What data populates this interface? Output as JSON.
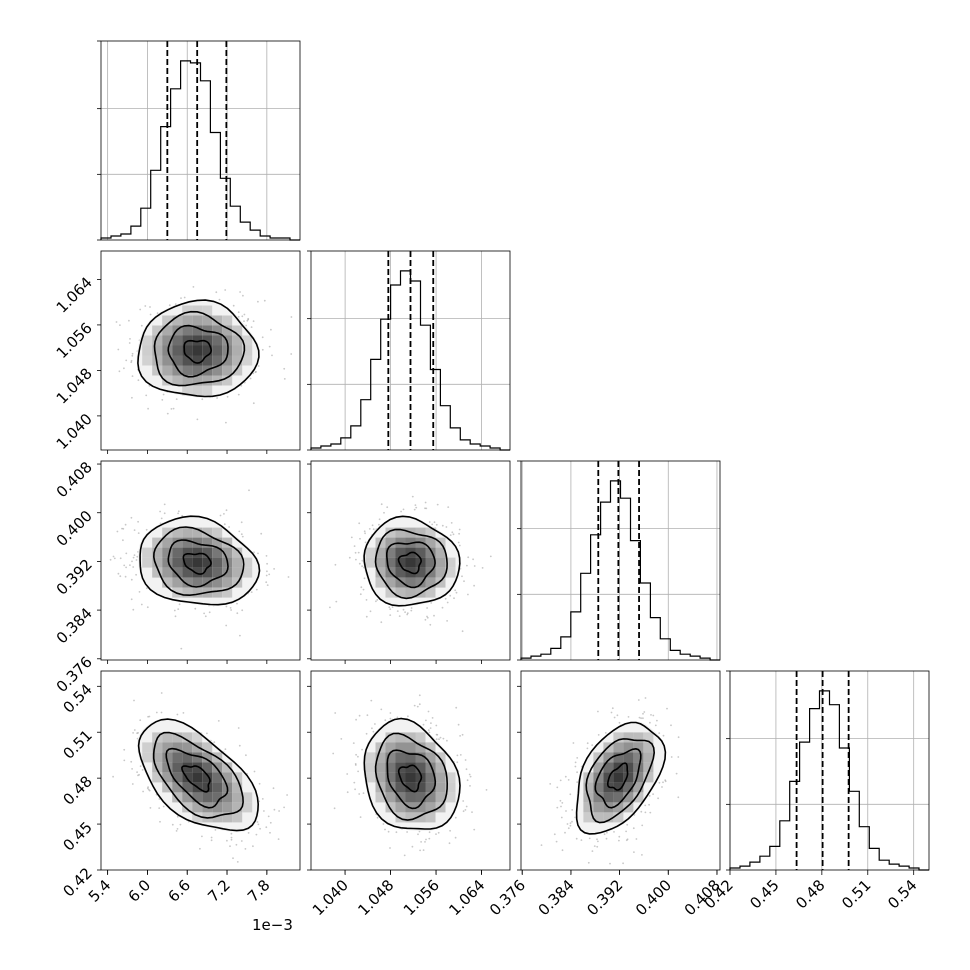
{
  "chart_data": {
    "type": "corner",
    "grid": true,
    "parameters": [
      {
        "range": [
          5.3,
          8.3
        ],
        "ticks": [
          "5.4",
          "6.0",
          "6.6",
          "7.2",
          "7.8"
        ],
        "tick_values": [
          5.4,
          6.0,
          6.6,
          7.2,
          7.8
        ],
        "offset_label": "1e−3"
      },
      {
        "range": [
          1.034,
          1.069
        ],
        "ticks": [
          "1.040",
          "1.048",
          "1.056",
          "1.064"
        ],
        "tick_values": [
          1.04,
          1.048,
          1.056,
          1.064
        ]
      },
      {
        "range": [
          0.3758,
          0.4085
        ],
        "ticks": [
          "0.376",
          "0.384",
          "0.392",
          "0.400",
          "0.408"
        ],
        "tick_values": [
          0.376,
          0.384,
          0.392,
          0.4,
          0.408
        ]
      },
      {
        "range": [
          0.42,
          0.55
        ],
        "ticks": [
          "0.42",
          "0.45",
          "0.48",
          "0.51",
          "0.54"
        ],
        "tick_values": [
          0.42,
          0.45,
          0.48,
          0.51,
          0.54
        ]
      }
    ],
    "quantiles": [
      [
        6.3,
        6.75,
        7.19
      ],
      [
        1.0476,
        1.0515,
        1.0555
      ],
      [
        0.3885,
        0.3918,
        0.3952
      ],
      [
        0.4635,
        0.4805,
        0.4975
      ]
    ],
    "histograms": [
      {
        "edges_start": 5.3,
        "bin_width": 0.15,
        "counts": [
          1,
          2,
          3,
          7,
          16,
          35,
          57,
          76,
          90,
          89,
          80,
          54,
          31,
          17,
          9,
          5,
          2,
          1,
          1,
          0
        ]
      },
      {
        "edges_start": 1.034,
        "bin_width": 0.00175,
        "counts": [
          1,
          2,
          3,
          6,
          12,
          25,
          45,
          65,
          82,
          89,
          84,
          62,
          40,
          22,
          11,
          5,
          3,
          2,
          1,
          0
        ]
      },
      {
        "edges_start": 0.3758,
        "bin_width": 0.001635,
        "counts": [
          1,
          2,
          3,
          6,
          12,
          25,
          45,
          65,
          82,
          93,
          84,
          62,
          40,
          22,
          11,
          5,
          3,
          2,
          1,
          0
        ]
      },
      {
        "edges_start": 0.42,
        "bin_width": 0.0065,
        "counts": [
          1,
          2,
          4,
          7,
          12,
          25,
          45,
          65,
          82,
          91,
          84,
          62,
          40,
          22,
          11,
          5,
          3,
          2,
          1,
          0
        ]
      }
    ],
    "densities": [
      {
        "row": 1,
        "col": 0,
        "center": [
          6.75,
          1.0515
        ],
        "sd": [
          0.45,
          0.0042
        ],
        "rho": 0.0
      },
      {
        "row": 2,
        "col": 0,
        "center": [
          6.75,
          0.3918
        ],
        "sd": [
          0.45,
          0.0036
        ],
        "rho": -0.15
      },
      {
        "row": 2,
        "col": 1,
        "center": [
          1.0515,
          0.3918
        ],
        "sd": [
          0.0042,
          0.0036
        ],
        "rho": -0.05
      },
      {
        "row": 3,
        "col": 0,
        "center": [
          6.75,
          0.4805
        ],
        "sd": [
          0.45,
          0.018
        ],
        "rho": -0.55
      },
      {
        "row": 3,
        "col": 1,
        "center": [
          1.0515,
          0.4805
        ],
        "sd": [
          0.0042,
          0.018
        ],
        "rho": -0.2
      },
      {
        "row": 3,
        "col": 2,
        "center": [
          0.3918,
          0.4805
        ],
        "sd": [
          0.0036,
          0.018
        ],
        "rho": 0.45
      }
    ]
  }
}
